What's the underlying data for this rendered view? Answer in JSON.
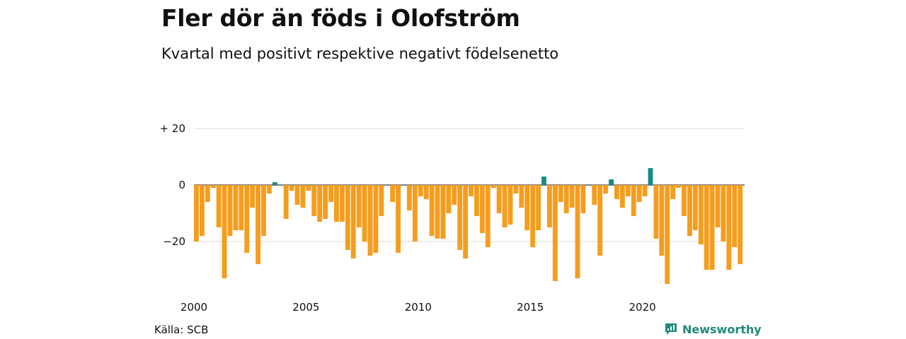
{
  "header": {
    "title": "Fler dör än föds i Olofström",
    "subtitle": "Kvartal med positivt respektive negativt födelsenetto"
  },
  "footer": {
    "source": "Källa: SCB",
    "brand": "Newsworthy"
  },
  "colors": {
    "negative": "#f59d1e",
    "positive": "#1a8c7e",
    "grid": "#dddddd",
    "baseline": "#333333"
  },
  "chart_data": {
    "type": "bar",
    "title": "Fler dör än föds i Olofström",
    "subtitle": "Kvartal med positivt respektive negativt födelsenetto",
    "xlabel": "",
    "ylabel": "",
    "ylim": [
      -37,
      22
    ],
    "y_ticks": [
      {
        "value": 20,
        "label": "+ 20"
      },
      {
        "value": 0,
        "label": "0"
      },
      {
        "value": -20,
        "label": "−20"
      }
    ],
    "x_ticks": [
      {
        "year": 2000,
        "label": "2000"
      },
      {
        "year": 2005,
        "label": "2005"
      },
      {
        "year": 2010,
        "label": "2010"
      },
      {
        "year": 2015,
        "label": "2015"
      },
      {
        "year": 2020,
        "label": "2020"
      }
    ],
    "start": "2000 Q1",
    "grid": true,
    "legend": "none",
    "values": [
      -20,
      -18,
      -6,
      -1,
      -15,
      -33,
      -18,
      -16,
      -16,
      -24,
      -8,
      -28,
      -18,
      -3,
      1,
      0,
      -12,
      -2,
      -7,
      -8,
      -2,
      -11,
      -13,
      -12,
      -6,
      -13,
      -13,
      -23,
      -26,
      -15,
      -20,
      -25,
      -24,
      -11,
      0,
      -6,
      -24,
      0,
      -9,
      -20,
      -4,
      -5,
      -18,
      -19,
      -19,
      -10,
      -7,
      -23,
      -26,
      -4,
      -11,
      -17,
      -22,
      -1,
      -10,
      -15,
      -14,
      -3,
      -8,
      -16,
      -22,
      -16,
      3,
      -15,
      -34,
      -6,
      -10,
      -8,
      -33,
      -10,
      0,
      -7,
      -25,
      -3,
      2,
      -5,
      -8,
      -4,
      -11,
      -6,
      -4,
      6,
      -19,
      -25,
      -35,
      -5,
      -1,
      -11,
      -18,
      -16,
      -21,
      -30,
      -30,
      -15,
      -20,
      -30,
      -22,
      -28
    ]
  }
}
